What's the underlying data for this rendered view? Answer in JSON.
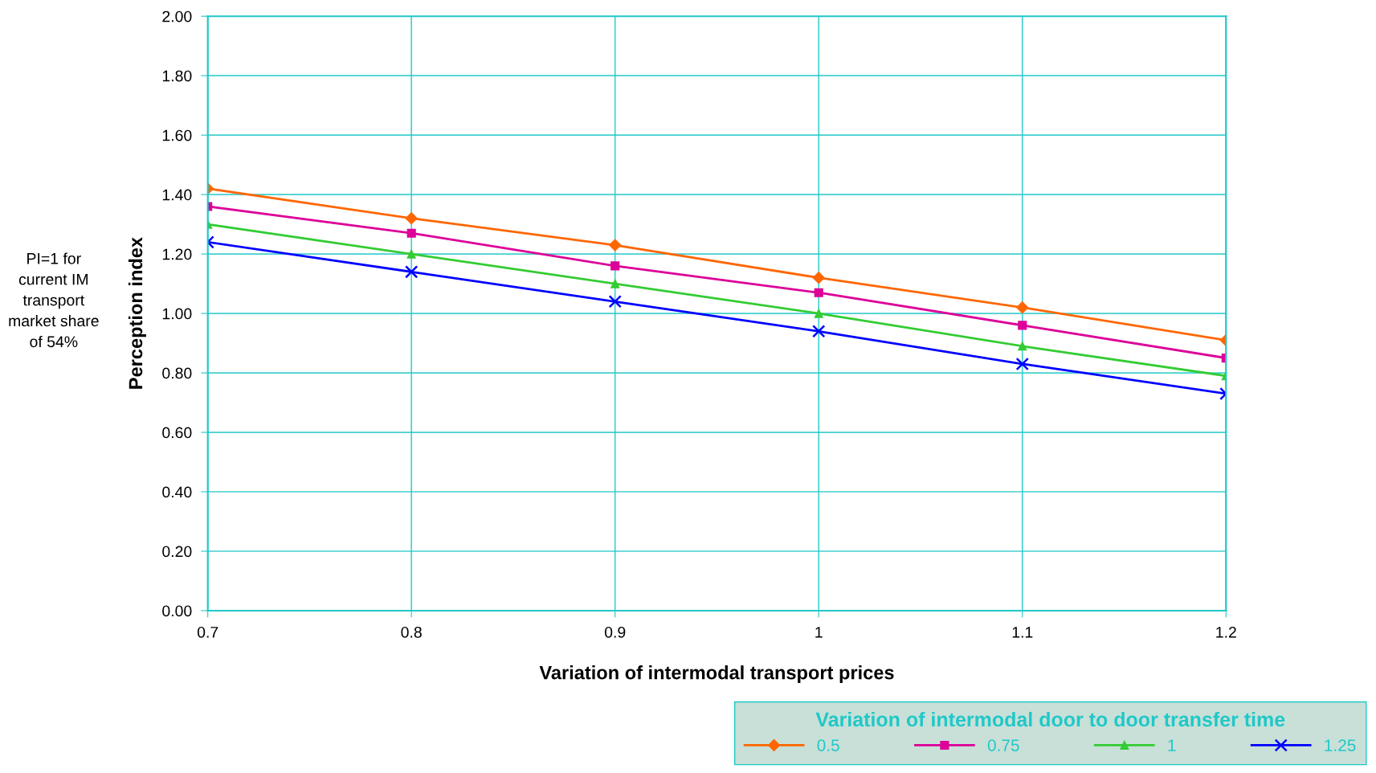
{
  "chart_data": {
    "type": "line",
    "xlabel": "Variation of intermodal transport prices",
    "ylabel": "Perception index",
    "legend_title": "Variation of intermodal door to door transfer time",
    "annotations": [
      "PI=1 for\ncurrent IM\ntransport\nmarket share\nof 54%"
    ],
    "x": [
      0.7,
      0.8,
      0.9,
      1,
      1.1,
      1.2
    ],
    "xlim": [
      0.7,
      1.2
    ],
    "xticks": [
      0.7,
      0.8,
      0.9,
      1,
      1.1,
      1.2
    ],
    "ylim": [
      0,
      2
    ],
    "yticks": [
      {
        "value": 0,
        "label": "0.00"
      },
      {
        "value": 0.2,
        "label": "0.20"
      },
      {
        "value": 0.4,
        "label": "0.40"
      },
      {
        "value": 0.6,
        "label": "0.60"
      },
      {
        "value": 0.8,
        "label": "0.80"
      },
      {
        "value": 1,
        "label": "1.00"
      },
      {
        "value": 1.2,
        "label": "1.20"
      },
      {
        "value": 1.4,
        "label": "1.40"
      },
      {
        "value": 1.6,
        "label": "1.60"
      },
      {
        "value": 1.8,
        "label": "1.80"
      },
      {
        "value": 2,
        "label": "2.00"
      }
    ],
    "grid": true,
    "legend": "bottom right",
    "line_style": "solid",
    "series": [
      {
        "name": "0.5",
        "color": "#ff6600",
        "marker": "diamond",
        "values": [
          1.42,
          1.32,
          1.23,
          1.12,
          1.02,
          0.91
        ]
      },
      {
        "name": "0.75",
        "color": "#dd0099",
        "marker": "square",
        "values": [
          1.36,
          1.27,
          1.16,
          1.07,
          0.96,
          0.85
        ]
      },
      {
        "name": "1",
        "color": "#33cc33",
        "marker": "triangle",
        "values": [
          1.3,
          1.2,
          1.1,
          1.0,
          0.89,
          0.79
        ]
      },
      {
        "name": "1.25",
        "color": "#0000ff",
        "marker": "cross",
        "values": [
          1.24,
          1.14,
          1.04,
          0.94,
          0.83,
          0.73
        ]
      }
    ]
  }
}
